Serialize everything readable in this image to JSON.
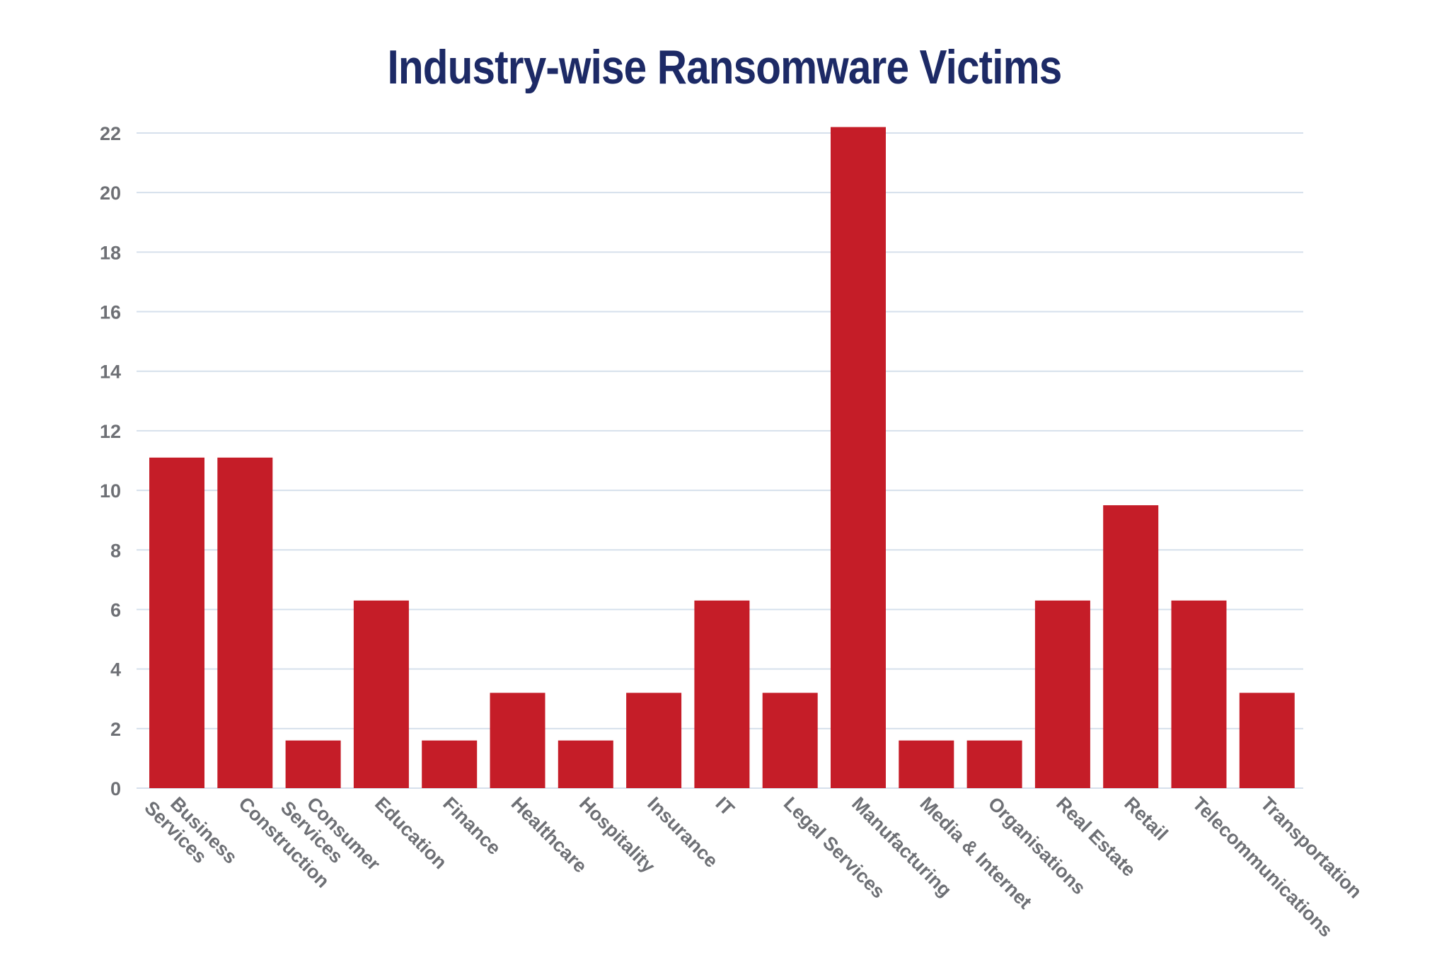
{
  "chart_data": {
    "type": "bar",
    "title": "Industry-wise Ransomware Victims",
    "xlabel": "",
    "ylabel": "",
    "categories": [
      "Business Services",
      "Construction",
      "Consumer Services",
      "Education",
      "Finance",
      "Healthcare",
      "Hospitality",
      "Insurance",
      "IT",
      "Legal Services",
      "Manufacturing",
      "Media & Internet",
      "Organisations",
      "Real Estate",
      "Retail",
      "Telecommunications",
      "Transportation"
    ],
    "category_label_lines": [
      [
        "Business",
        "Services"
      ],
      [
        "Construction"
      ],
      [
        "Consumer",
        "Services"
      ],
      [
        "Education"
      ],
      [
        "Finance"
      ],
      [
        "Healthcare"
      ],
      [
        "Hospitality"
      ],
      [
        "Insurance"
      ],
      [
        "IT"
      ],
      [
        "Legal Services"
      ],
      [
        "Manufacturing"
      ],
      [
        "Media & Internet"
      ],
      [
        "Organisations"
      ],
      [
        "Real Estate"
      ],
      [
        "Retail"
      ],
      [
        "Telecommunications"
      ],
      [
        "Transportation"
      ]
    ],
    "values": [
      11.1,
      11.1,
      1.6,
      6.3,
      1.6,
      3.2,
      1.6,
      3.2,
      6.3,
      3.2,
      22.2,
      1.6,
      1.6,
      6.3,
      9.5,
      6.3,
      3.2
    ],
    "ylim": [
      0,
      22
    ],
    "yticks": [
      0,
      2,
      4,
      6,
      8,
      10,
      12,
      14,
      16,
      18,
      20,
      22
    ],
    "grid": true,
    "legend": "none",
    "bar_color": "#c51d28",
    "title_color": "#1d2a66"
  }
}
